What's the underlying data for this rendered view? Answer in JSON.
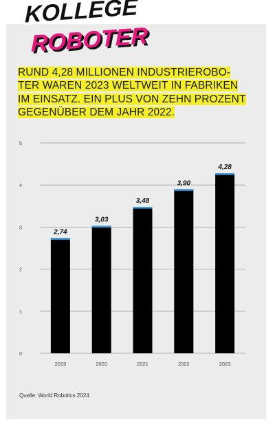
{
  "logo": {
    "line1": "KOLLEGE",
    "line2": "ROBOTER"
  },
  "headline": {
    "lines": [
      "RUND 4,28 MILLIONEN INDUSTRIEROBO-",
      "TER WAREN 2023 WELTWEIT IN FABRIKEN",
      "IM EINSATZ. EIN PLUS VON ZEHN PROZENT",
      "GEGENÜBER DEM JAHR 2022."
    ]
  },
  "source": "Quelle: World Robotics 2024",
  "colors": {
    "bar": "#000000",
    "bar_cap": "#3a9be0",
    "highlight": "#f3ee27",
    "logo_pink": "#e6197e",
    "background": "#ececec"
  },
  "chart_data": {
    "type": "bar",
    "categories": [
      "2019",
      "2020",
      "2021",
      "2022",
      "2023"
    ],
    "values": [
      2.74,
      3.03,
      3.48,
      3.9,
      4.28
    ],
    "value_labels": [
      "2,74",
      "3,03",
      "3,48",
      "3,90",
      "4,28"
    ],
    "y_ticks": [
      "0",
      "1",
      "2",
      "3",
      "4",
      "5"
    ],
    "ylim": [
      0,
      5
    ],
    "grid": true
  }
}
